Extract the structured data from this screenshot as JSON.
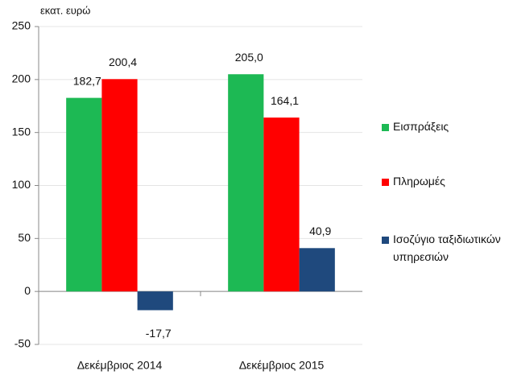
{
  "chart_data": {
    "type": "bar",
    "y_axis_label": "εκατ. ευρώ",
    "categories": [
      "Δεκέμβριος 2014",
      "Δεκέμβριος 2015"
    ],
    "series": [
      {
        "name": "Εισπράξεις",
        "color": "#1db954",
        "values": [
          182.7,
          205.0
        ],
        "value_labels": [
          "182,7",
          "205,0"
        ]
      },
      {
        "name": "Πληρωμές",
        "color": "#ff0000",
        "values": [
          200.4,
          164.1
        ],
        "value_labels": [
          "200,4",
          "164,1"
        ]
      },
      {
        "name": "Ισοζύγιο ταξιδιωτικών υπηρεσιών",
        "color": "#1f497d",
        "values": [
          -17.7,
          40.9
        ],
        "value_labels": [
          "-17,7",
          "40,9"
        ]
      }
    ],
    "ylim": [
      -50,
      250
    ],
    "yticks": [
      -50,
      0,
      50,
      100,
      150,
      200,
      250
    ],
    "grid": true,
    "legend": "right"
  }
}
